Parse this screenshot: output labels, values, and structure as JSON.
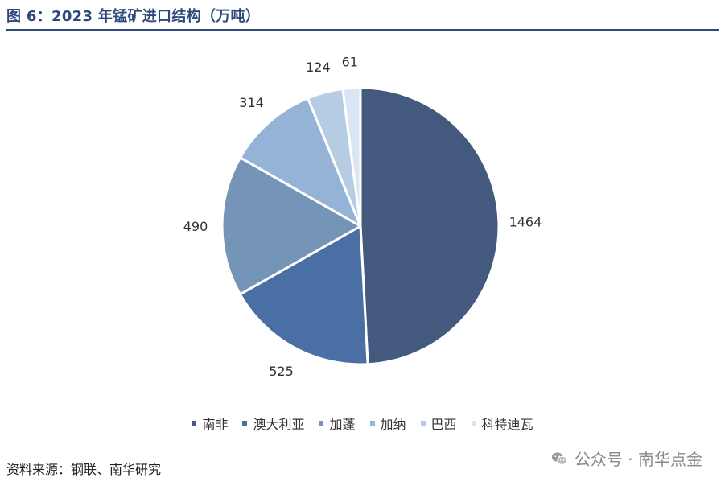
{
  "header": {
    "title": "图 6：2023 年锰矿进口结构（万吨）"
  },
  "chart_data": {
    "type": "pie",
    "title": "",
    "categories": [
      "南非",
      "澳大利亚",
      "加蓬",
      "加纳",
      "巴西",
      "科特迪瓦"
    ],
    "values": [
      1464,
      525,
      490,
      314,
      124,
      61
    ],
    "colors": [
      "#435a7e",
      "#4a6fa5",
      "#7494b8",
      "#95b3d7",
      "#b5cce3",
      "#dce6f2"
    ],
    "legend_position": "bottom"
  },
  "footer": {
    "source": "资料来源：钢联、南华研究"
  },
  "watermark": {
    "icon": "wechat-icon",
    "text": "公众号 · 南华点金"
  }
}
